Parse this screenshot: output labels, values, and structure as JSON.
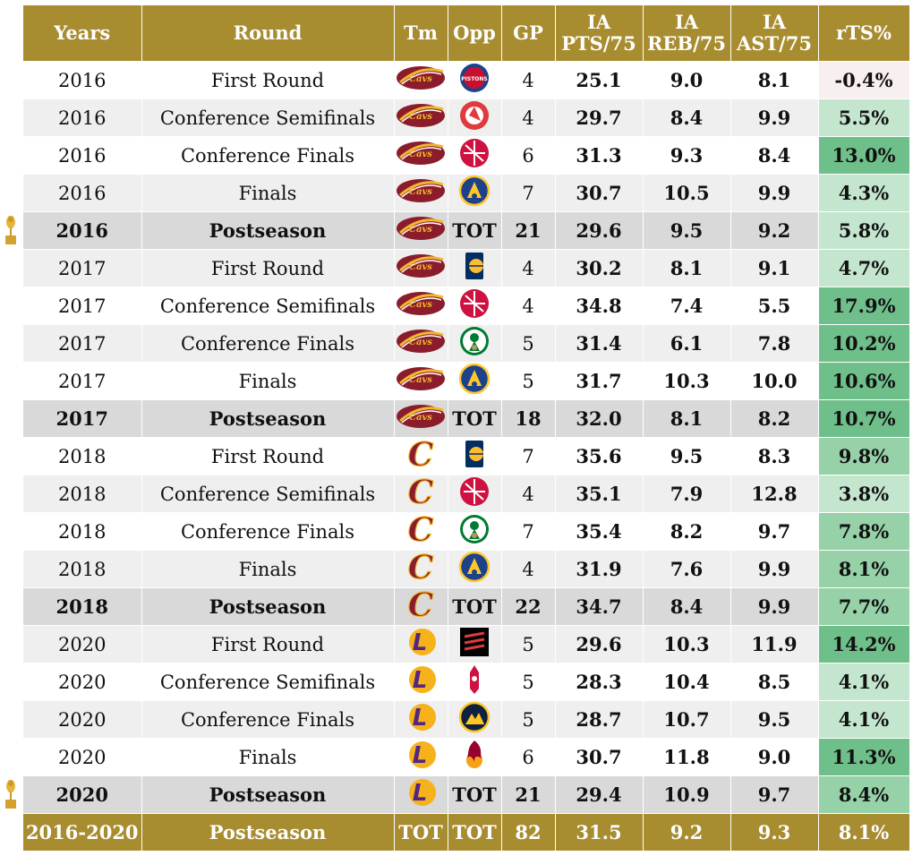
{
  "headers": {
    "years": "Years",
    "round": "Round",
    "tm": "Tm",
    "opp": "Opp",
    "gp": "GP",
    "pts_line1": "IA",
    "pts_line2": "PTS/75",
    "reb_line1": "IA",
    "reb_line2": "REB/75",
    "ast_line1": "IA",
    "ast_line2": "AST/75",
    "rts": "rTS%"
  },
  "team_icons": {
    "cavs_wordmark": "cavaliers-wordmark-logo",
    "cavs_c": "cavaliers-c-logo",
    "lakers": "lakers-logo"
  },
  "opp_icons": {
    "pistons": "pistons-logo",
    "hawks": "hawks-logo",
    "raptors": "raptors-logo",
    "warriors": "warriors-logo",
    "pacers": "pacers-logo",
    "celtics": "celtics-logo",
    "blazers": "trail-blazers-logo",
    "rockets": "rockets-logo",
    "nuggets": "nuggets-logo",
    "heat": "heat-logo"
  },
  "colors": {
    "header_gold": "#a88c30",
    "rts_negative": "#f8f0ee",
    "rts_low": "#c4e6cf",
    "rts_mid": "#96d1a8",
    "rts_high": "#6fbf8a"
  },
  "rows": [
    {
      "year": "2016",
      "round": "First Round",
      "team": "cavs_wordmark",
      "opp": "pistons",
      "opp_text": "",
      "gp": "4",
      "pts": "25.1",
      "reb": "9.0",
      "ast": "8.1",
      "rts": "-0.4%",
      "rts_value": -0.4,
      "total": false,
      "champion": false
    },
    {
      "year": "2016",
      "round": "Conference Semifinals",
      "team": "cavs_wordmark",
      "opp": "hawks",
      "opp_text": "",
      "gp": "4",
      "pts": "29.7",
      "reb": "8.4",
      "ast": "9.9",
      "rts": "5.5%",
      "rts_value": 5.5,
      "total": false,
      "champion": false
    },
    {
      "year": "2016",
      "round": "Conference Finals",
      "team": "cavs_wordmark",
      "opp": "raptors",
      "opp_text": "",
      "gp": "6",
      "pts": "31.3",
      "reb": "9.3",
      "ast": "8.4",
      "rts": "13.0%",
      "rts_value": 13.0,
      "total": false,
      "champion": false
    },
    {
      "year": "2016",
      "round": "Finals",
      "team": "cavs_wordmark",
      "opp": "warriors",
      "opp_text": "",
      "gp": "7",
      "pts": "30.7",
      "reb": "10.5",
      "ast": "9.9",
      "rts": "4.3%",
      "rts_value": 4.3,
      "total": false,
      "champion": false
    },
    {
      "year": "2016",
      "round": "Postseason",
      "team": "cavs_wordmark",
      "opp": "",
      "opp_text": "TOT",
      "gp": "21",
      "pts": "29.6",
      "reb": "9.5",
      "ast": "9.2",
      "rts": "5.8%",
      "rts_value": 5.8,
      "total": true,
      "champion": true
    },
    {
      "year": "2017",
      "round": "First Round",
      "team": "cavs_wordmark",
      "opp": "pacers",
      "opp_text": "",
      "gp": "4",
      "pts": "30.2",
      "reb": "8.1",
      "ast": "9.1",
      "rts": "4.7%",
      "rts_value": 4.7,
      "total": false,
      "champion": false
    },
    {
      "year": "2017",
      "round": "Conference Semifinals",
      "team": "cavs_wordmark",
      "opp": "raptors",
      "opp_text": "",
      "gp": "4",
      "pts": "34.8",
      "reb": "7.4",
      "ast": "5.5",
      "rts": "17.9%",
      "rts_value": 17.9,
      "total": false,
      "champion": false
    },
    {
      "year": "2017",
      "round": "Conference Finals",
      "team": "cavs_wordmark",
      "opp": "celtics",
      "opp_text": "",
      "gp": "5",
      "pts": "31.4",
      "reb": "6.1",
      "ast": "7.8",
      "rts": "10.2%",
      "rts_value": 10.2,
      "total": false,
      "champion": false
    },
    {
      "year": "2017",
      "round": "Finals",
      "team": "cavs_wordmark",
      "opp": "warriors",
      "opp_text": "",
      "gp": "5",
      "pts": "31.7",
      "reb": "10.3",
      "ast": "10.0",
      "rts": "10.6%",
      "rts_value": 10.6,
      "total": false,
      "champion": false
    },
    {
      "year": "2017",
      "round": "Postseason",
      "team": "cavs_wordmark",
      "opp": "",
      "opp_text": "TOT",
      "gp": "18",
      "pts": "32.0",
      "reb": "8.1",
      "ast": "8.2",
      "rts": "10.7%",
      "rts_value": 10.7,
      "total": true,
      "champion": false
    },
    {
      "year": "2018",
      "round": "First Round",
      "team": "cavs_c",
      "opp": "pacers",
      "opp_text": "",
      "gp": "7",
      "pts": "35.6",
      "reb": "9.5",
      "ast": "8.3",
      "rts": "9.8%",
      "rts_value": 9.8,
      "total": false,
      "champion": false
    },
    {
      "year": "2018",
      "round": "Conference Semifinals",
      "team": "cavs_c",
      "opp": "raptors",
      "opp_text": "",
      "gp": "4",
      "pts": "35.1",
      "reb": "7.9",
      "ast": "12.8",
      "rts": "3.8%",
      "rts_value": 3.8,
      "total": false,
      "champion": false
    },
    {
      "year": "2018",
      "round": "Conference Finals",
      "team": "cavs_c",
      "opp": "celtics",
      "opp_text": "",
      "gp": "7",
      "pts": "35.4",
      "reb": "8.2",
      "ast": "9.7",
      "rts": "7.8%",
      "rts_value": 7.8,
      "total": false,
      "champion": false
    },
    {
      "year": "2018",
      "round": "Finals",
      "team": "cavs_c",
      "opp": "warriors",
      "opp_text": "",
      "gp": "4",
      "pts": "31.9",
      "reb": "7.6",
      "ast": "9.9",
      "rts": "8.1%",
      "rts_value": 8.1,
      "total": false,
      "champion": false
    },
    {
      "year": "2018",
      "round": "Postseason",
      "team": "cavs_c",
      "opp": "",
      "opp_text": "TOT",
      "gp": "22",
      "pts": "34.7",
      "reb": "8.4",
      "ast": "9.9",
      "rts": "7.7%",
      "rts_value": 7.7,
      "total": true,
      "champion": false
    },
    {
      "year": "2020",
      "round": "First Round",
      "team": "lakers",
      "opp": "blazers",
      "opp_text": "",
      "gp": "5",
      "pts": "29.6",
      "reb": "10.3",
      "ast": "11.9",
      "rts": "14.2%",
      "rts_value": 14.2,
      "total": false,
      "champion": false
    },
    {
      "year": "2020",
      "round": "Conference Semifinals",
      "team": "lakers",
      "opp": "rockets",
      "opp_text": "",
      "gp": "5",
      "pts": "28.3",
      "reb": "10.4",
      "ast": "8.5",
      "rts": "4.1%",
      "rts_value": 4.1,
      "total": false,
      "champion": false
    },
    {
      "year": "2020",
      "round": "Conference Finals",
      "team": "lakers",
      "opp": "nuggets",
      "opp_text": "",
      "gp": "5",
      "pts": "28.7",
      "reb": "10.7",
      "ast": "9.5",
      "rts": "4.1%",
      "rts_value": 4.1,
      "total": false,
      "champion": false
    },
    {
      "year": "2020",
      "round": "Finals",
      "team": "lakers",
      "opp": "heat",
      "opp_text": "",
      "gp": "6",
      "pts": "30.7",
      "reb": "11.8",
      "ast": "9.0",
      "rts": "11.3%",
      "rts_value": 11.3,
      "total": false,
      "champion": false
    },
    {
      "year": "2020",
      "round": "Postseason",
      "team": "lakers",
      "opp": "",
      "opp_text": "TOT",
      "gp": "21",
      "pts": "29.4",
      "reb": "10.9",
      "ast": "9.7",
      "rts": "8.4%",
      "rts_value": 8.4,
      "total": true,
      "champion": true
    }
  ],
  "footer": {
    "years": "2016-2020",
    "round": "Postseason",
    "tm": "TOT",
    "opp": "TOT",
    "gp": "82",
    "pts": "31.5",
    "reb": "9.2",
    "ast": "9.3",
    "rts": "8.1%"
  }
}
